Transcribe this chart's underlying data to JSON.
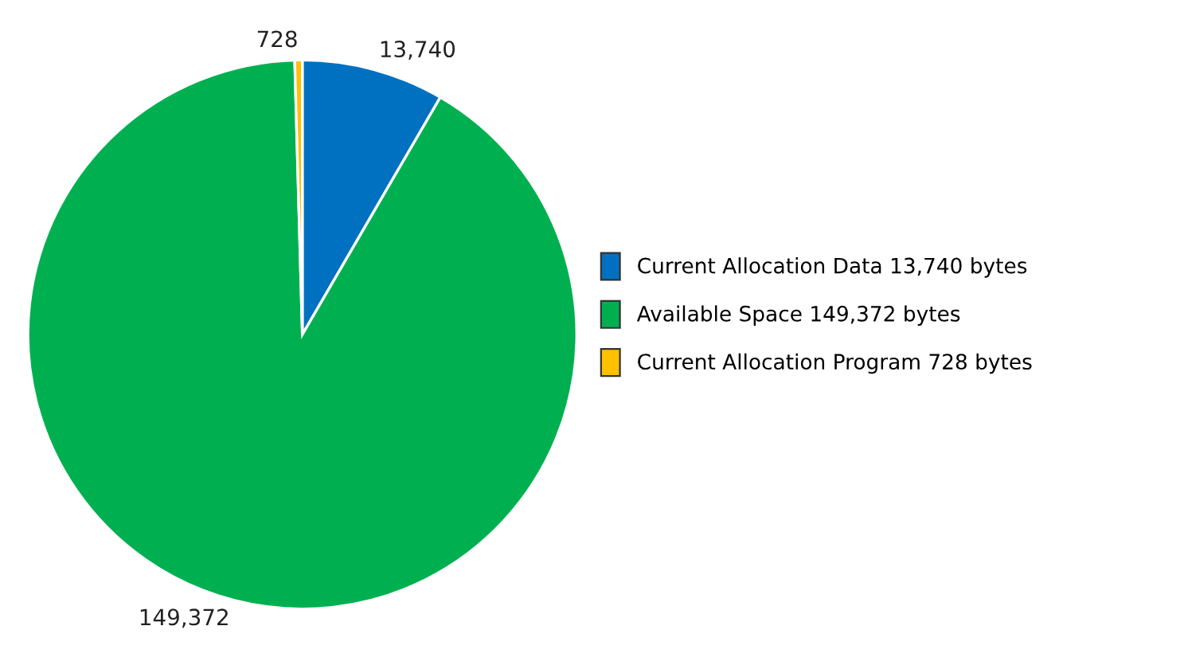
{
  "chart_data": {
    "type": "pie",
    "categories": [
      "Current Allocation Data 13,740 bytes",
      "Available Space 149,372 bytes",
      "Current Allocation Program 728 bytes"
    ],
    "values": [
      13740,
      149372,
      728
    ],
    "value_labels": [
      "13,740",
      "149,372",
      "728"
    ],
    "colors": [
      "#0070c0",
      "#00b050",
      "#ffc000"
    ],
    "legend": "right"
  }
}
